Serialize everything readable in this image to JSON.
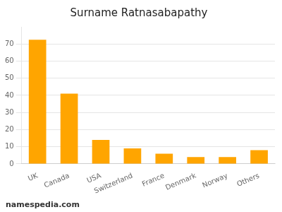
{
  "chart_data": {
    "type": "bar",
    "title": "Surname Ratnasabapathy",
    "categories": [
      "UK",
      "Canada",
      "USA",
      "Switzerland",
      "France",
      "Denmark",
      "Norway",
      "Others"
    ],
    "values": [
      72.5,
      41.0,
      14.0,
      9.0,
      6.0,
      4.0,
      4.0,
      8.0
    ],
    "color": "#FFA500",
    "ylim": [
      0,
      80
    ],
    "yticks": [
      0,
      10,
      20,
      30,
      40,
      50,
      60,
      70
    ],
    "grid": true,
    "annotations": [
      "namespedia.com"
    ]
  }
}
